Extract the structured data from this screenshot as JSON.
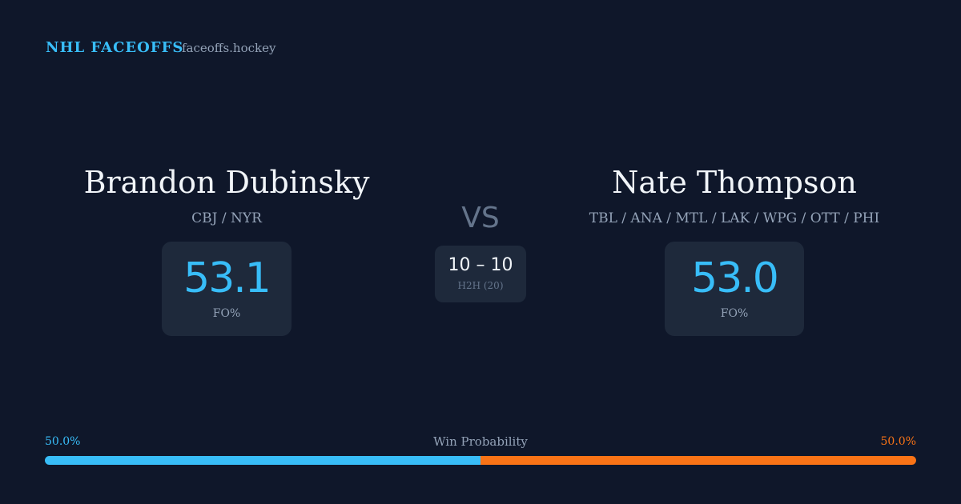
{
  "header": {
    "brand": "NHL FACEOFFS",
    "site": "faceoffs.hockey"
  },
  "players": [
    {
      "name": "Brandon Dubinsky",
      "teams": "CBJ / NYR",
      "fo_pct": "53.1",
      "fo_label": "FO%"
    },
    {
      "name": "Nate Thompson",
      "teams": "TBL / ANA / MTL / LAK / WPG / OTT / PHI",
      "fo_pct": "53.0",
      "fo_label": "FO%"
    }
  ],
  "vs": "VS",
  "h2h": {
    "record": "10 – 10",
    "label": "H2H (20)"
  },
  "win_probability": {
    "title": "Win Probability",
    "left": {
      "value": 50.0,
      "label": "50.0%",
      "color": "#38bdf8"
    },
    "right": {
      "value": 50.0,
      "label": "50.0%",
      "color": "#f97316"
    }
  }
}
